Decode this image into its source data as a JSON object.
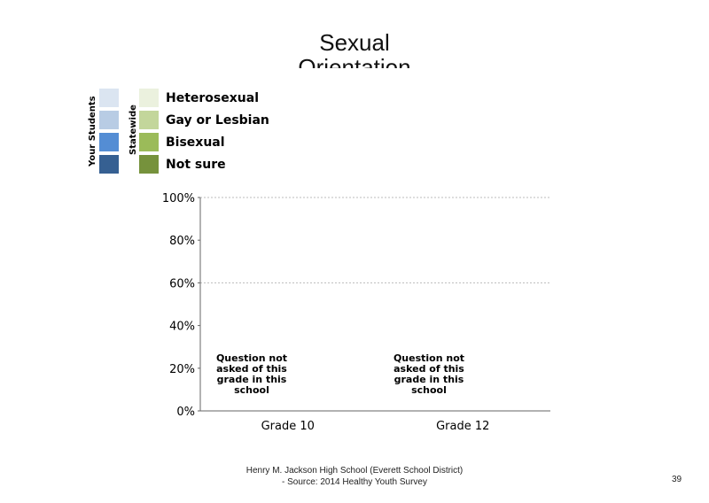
{
  "title": "Sexual\nOrientation",
  "legend": {
    "your_students_label": "Your Students",
    "statewide_label": "Statewide",
    "your_students_colors": [
      "#dbe5f1",
      "#b8cce4",
      "#548dd4",
      "#366092"
    ],
    "statewide_colors": [
      "#ebf1de",
      "#c3d69b",
      "#9bbb59",
      "#76923c"
    ],
    "items": [
      "Heterosexual",
      "Gay or Lesbian",
      "Bisexual",
      "Not sure"
    ]
  },
  "chart_data": {
    "type": "bar",
    "categories": [
      "Grade 10",
      "Grade 12"
    ],
    "series": [
      {
        "name": "Heterosexual",
        "values": [
          null,
          null
        ]
      },
      {
        "name": "Gay or Lesbian",
        "values": [
          null,
          null
        ]
      },
      {
        "name": "Bisexual",
        "values": [
          null,
          null
        ]
      },
      {
        "name": "Not sure",
        "values": [
          null,
          null
        ]
      }
    ],
    "ylim": [
      0,
      100
    ],
    "yticks": [
      "0%",
      "20%",
      "40%",
      "60%",
      "80%",
      "100%"
    ],
    "gridlines": [
      60,
      100
    ],
    "annotations": [
      "Question not\nasked of this\ngrade in this\nschool",
      "Question not\nasked of this\ngrade in this\nschool"
    ]
  },
  "footer": {
    "line1": "Henry M.  Jackson High  School (Everett School District)",
    "line2": "- Source: 2014 Healthy  Youth Survey"
  },
  "page_number": "39"
}
